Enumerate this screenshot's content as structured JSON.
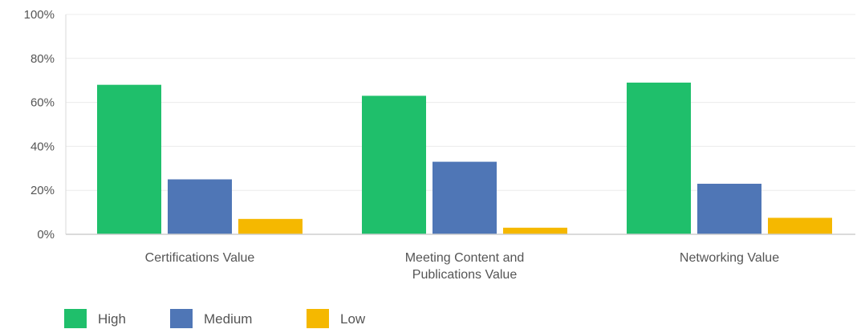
{
  "chart_data": {
    "type": "bar",
    "categories": [
      [
        "Certifications Value"
      ],
      [
        "Meeting Content and",
        "Publications Value"
      ],
      [
        "Networking Value"
      ]
    ],
    "series": [
      {
        "name": "High",
        "color": "#1fbf6b",
        "values": [
          68,
          63,
          69
        ]
      },
      {
        "name": "Medium",
        "color": "#4f76b6",
        "values": [
          25,
          33,
          23
        ]
      },
      {
        "name": "Low",
        "color": "#f5b800",
        "values": [
          7,
          3,
          7.5
        ]
      }
    ],
    "y_ticks": [
      "0%",
      "20%",
      "40%",
      "60%",
      "80%",
      "100%"
    ],
    "ylim": [
      0,
      100
    ],
    "grid": true,
    "legend_position": "bottom-left"
  }
}
